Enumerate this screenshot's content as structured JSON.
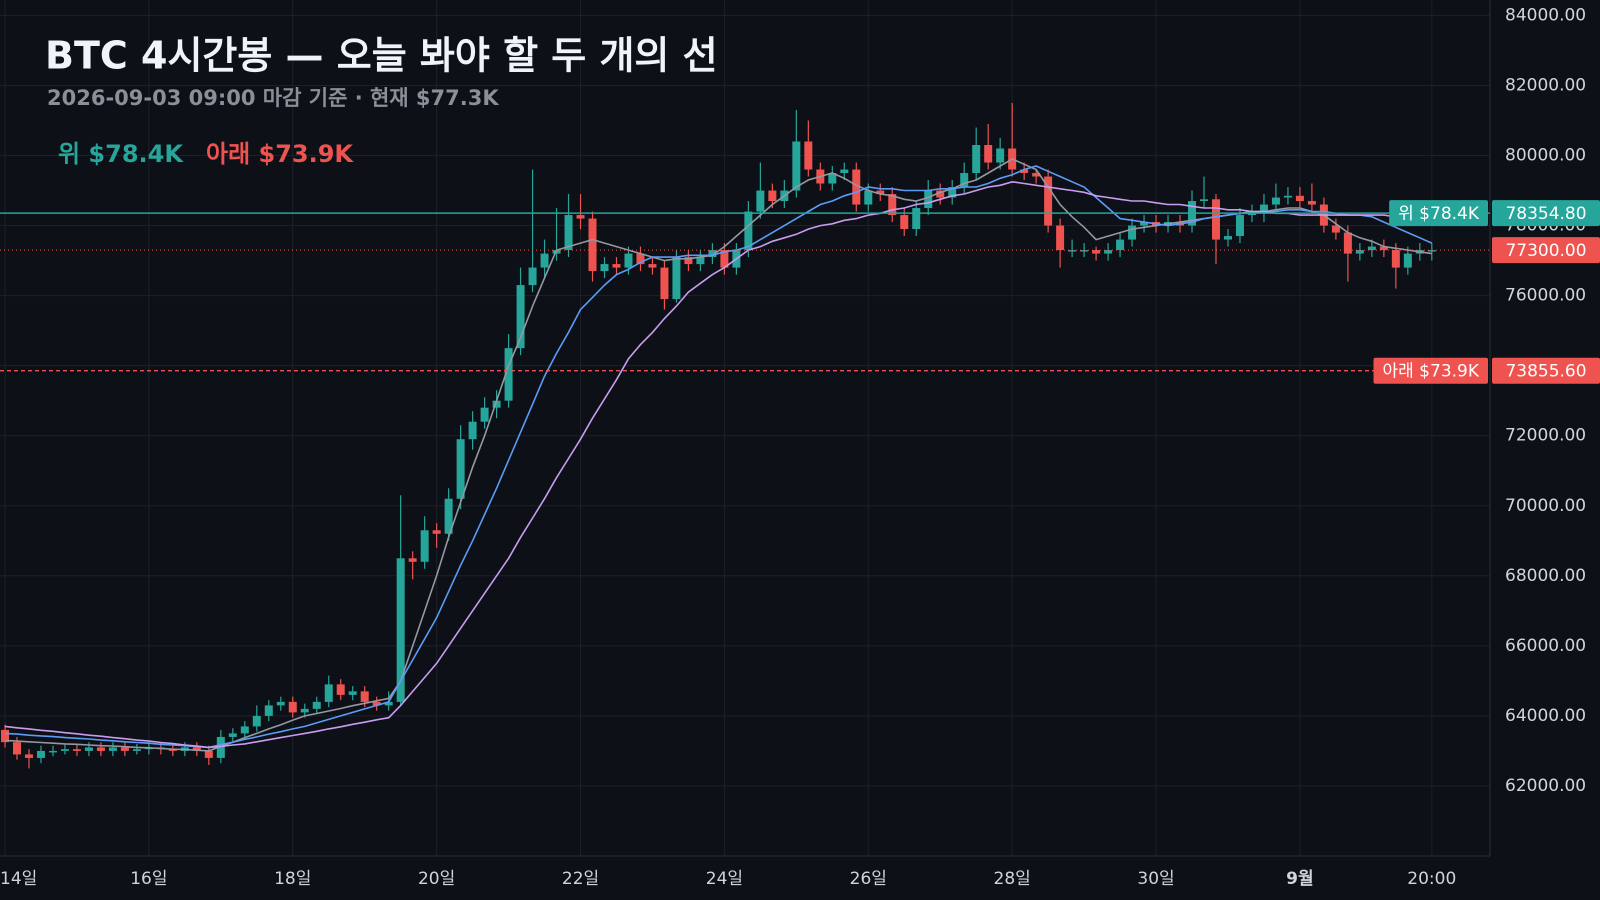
{
  "chart_data": {
    "type": "candlestick",
    "title": "BTC 4시간봉 — 오늘 봐야 할 두 개의 선",
    "subtitle": "2026-09-03 09:00 마감 기준 · 현재 $77.3K",
    "categories": [
      "14일",
      null,
      null,
      null,
      null,
      null,
      null,
      null,
      null,
      null,
      null,
      null,
      "16일",
      null,
      null,
      null,
      null,
      null,
      null,
      null,
      null,
      null,
      null,
      null,
      "18일",
      null,
      null,
      null,
      null,
      null,
      null,
      null,
      null,
      null,
      null,
      null,
      "20일",
      null,
      null,
      null,
      null,
      null,
      null,
      null,
      null,
      null,
      null,
      null,
      "22일",
      null,
      null,
      null,
      null,
      null,
      null,
      null,
      null,
      null,
      null,
      null,
      "24일",
      null,
      null,
      null,
      null,
      null,
      null,
      null,
      null,
      null,
      null,
      null,
      "26일",
      null,
      null,
      null,
      null,
      null,
      null,
      null,
      null,
      null,
      null,
      null,
      "28일",
      null,
      null,
      null,
      null,
      null,
      null,
      null,
      null,
      null,
      null,
      null,
      "30일",
      null,
      null,
      null,
      null,
      null,
      null,
      null,
      null,
      null,
      null,
      null,
      "9월",
      null,
      null,
      null,
      null,
      null,
      null,
      null,
      null,
      null,
      null,
      "20:00"
    ],
    "bold_categories": [
      108
    ],
    "open": [
      63600,
      63250,
      62900,
      62800,
      63000,
      63000,
      63050,
      63000,
      63100,
      63000,
      63100,
      63000,
      63050,
      63100,
      63050,
      63000,
      63100,
      63000,
      62800,
      63400,
      63500,
      63700,
      64000,
      64300,
      64400,
      64100,
      64200,
      64400,
      64900,
      64600,
      64700,
      64400,
      64300,
      64400,
      68500,
      68400,
      69300,
      69200,
      70200,
      71900,
      72400,
      72800,
      73000,
      74500,
      76300,
      76800,
      77200,
      77300,
      78300,
      78200,
      76700,
      76900,
      76800,
      77200,
      76900,
      76800,
      75900,
      77100,
      76900,
      77100,
      77300,
      76800,
      77300,
      78400,
      79000,
      78700,
      79000,
      80400,
      79600,
      79200,
      79500,
      79600,
      78600,
      79000,
      78900,
      78300,
      77900,
      78500,
      79000,
      78800,
      79100,
      79500,
      80300,
      79800,
      80200,
      79600,
      79500,
      79400,
      78000,
      77300,
      77300,
      77300,
      77200,
      77300,
      77600,
      78000,
      78100,
      78000,
      78100,
      78000,
      78700,
      78750,
      77600,
      77700,
      78300,
      78350,
      78600,
      78800,
      78850,
      78700,
      78600,
      78000,
      77800,
      77200,
      77300,
      77400,
      77300,
      76800,
      77200,
      77300
    ],
    "high": [
      63750,
      63400,
      63050,
      63150,
      63150,
      63200,
      63200,
      63250,
      63250,
      63250,
      63250,
      63200,
      63250,
      63250,
      63200,
      63250,
      63250,
      63150,
      63600,
      63650,
      63850,
      64300,
      64450,
      64550,
      64550,
      64350,
      64550,
      65150,
      65050,
      64850,
      64850,
      64550,
      64700,
      70300,
      68700,
      69700,
      69500,
      70500,
      72300,
      72700,
      73100,
      73300,
      74900,
      76800,
      79600,
      77600,
      78500,
      78900,
      78900,
      78400,
      77100,
      77100,
      77400,
      77400,
      77100,
      77000,
      77300,
      77300,
      77300,
      77500,
      77500,
      77500,
      78700,
      79800,
      79200,
      79300,
      81300,
      81000,
      79800,
      79700,
      79800,
      79800,
      79200,
      79200,
      79100,
      78500,
      78700,
      79300,
      79200,
      79300,
      79800,
      80800,
      80900,
      80500,
      81500,
      79800,
      79600,
      79600,
      78200,
      77600,
      77500,
      77400,
      77500,
      77800,
      78200,
      78300,
      78300,
      78300,
      78300,
      79000,
      79400,
      78900,
      77900,
      78500,
      78600,
      78900,
      79200,
      79100,
      79100,
      79200,
      78800,
      78200,
      78000,
      77500,
      77600,
      77600,
      77500,
      77400,
      77500,
      77500
    ],
    "low": [
      63100,
      62750,
      62500,
      62650,
      62850,
      62900,
      62850,
      62850,
      62850,
      62850,
      62850,
      62900,
      62900,
      62900,
      62850,
      62850,
      62850,
      62600,
      62650,
      63250,
      63350,
      63550,
      63850,
      64150,
      63950,
      63950,
      64050,
      64250,
      64450,
      64450,
      64250,
      64150,
      64150,
      64300,
      67900,
      68200,
      68800,
      69000,
      69900,
      71600,
      72200,
      72500,
      72800,
      74300,
      76100,
      76500,
      77000,
      77100,
      77900,
      76400,
      76500,
      76600,
      76600,
      76700,
      76600,
      75600,
      75800,
      76700,
      76700,
      76900,
      76600,
      76600,
      77100,
      78200,
      78500,
      78500,
      78800,
      79400,
      79000,
      79000,
      79300,
      78400,
      78400,
      78700,
      78100,
      77700,
      77700,
      78300,
      78600,
      78600,
      78900,
      79300,
      79600,
      79600,
      79400,
      79300,
      79200,
      77800,
      76800,
      77100,
      77100,
      77000,
      77000,
      77100,
      77400,
      77800,
      77800,
      77800,
      77800,
      77800,
      78500,
      76900,
      77400,
      77500,
      78100,
      78100,
      78400,
      78600,
      78500,
      78400,
      77800,
      77600,
      76400,
      77000,
      77100,
      77100,
      76200,
      76600,
      77000,
      77000
    ],
    "close": [
      63250,
      62900,
      62800,
      63000,
      63000,
      63050,
      63000,
      63100,
      63000,
      63100,
      63000,
      63050,
      63100,
      63050,
      63000,
      63100,
      63000,
      62800,
      63400,
      63500,
      63700,
      64000,
      64300,
      64400,
      64100,
      64200,
      64400,
      64900,
      64600,
      64700,
      64400,
      64300,
      64400,
      68500,
      68400,
      69300,
      69200,
      70200,
      71900,
      72400,
      72800,
      73000,
      74500,
      76300,
      76800,
      77200,
      77300,
      78300,
      78200,
      76700,
      76900,
      76800,
      77200,
      76900,
      76800,
      75900,
      77100,
      76900,
      77100,
      77300,
      76800,
      77300,
      78400,
      79000,
      78700,
      79000,
      80400,
      79600,
      79200,
      79500,
      79600,
      78600,
      79000,
      78900,
      78300,
      77900,
      78500,
      79000,
      78800,
      79100,
      79500,
      80300,
      79800,
      80200,
      79600,
      79500,
      79400,
      78000,
      77300,
      77300,
      77300,
      77200,
      77300,
      77600,
      78000,
      78100,
      78000,
      78100,
      78000,
      78700,
      78750,
      77600,
      77700,
      78300,
      78350,
      78600,
      78800,
      78850,
      78700,
      78600,
      78000,
      77800,
      77200,
      77300,
      77400,
      77300,
      76800,
      77200,
      77300,
      77300
    ],
    "up_color": "#26a69a",
    "down_color": "#ef5350",
    "lines": [
      {
        "color": "#9598a1",
        "values": [
          63300,
          63280,
          63260,
          63240,
          63220,
          63200,
          63190,
          63170,
          63150,
          63140,
          63120,
          63100,
          63090,
          63070,
          63050,
          63040,
          63020,
          63000,
          63130,
          63250,
          63380,
          63500,
          63630,
          63750,
          63880,
          64000,
          64070,
          64140,
          64210,
          64290,
          64360,
          64430,
          64500,
          65000,
          66000,
          67000,
          68000,
          69100,
          70100,
          71100,
          72000,
          73000,
          74000,
          74800,
          75700,
          76500,
          77300,
          77400,
          77500,
          77600,
          77500,
          77400,
          77300,
          77200,
          77100,
          77000,
          77050,
          77050,
          77100,
          77150,
          77400,
          77700,
          78000,
          78300,
          78600,
          78850,
          79100,
          79300,
          79400,
          79500,
          79350,
          79150,
          79000,
          78900,
          78850,
          78750,
          78700,
          78800,
          78950,
          79050,
          79200,
          79300,
          79500,
          79700,
          79900,
          79750,
          79600,
          79100,
          78600,
          78250,
          77950,
          77600,
          77700,
          77800,
          77900,
          77950,
          78000,
          78050,
          78100,
          78150,
          78200,
          78250,
          78300,
          78350,
          78400,
          78400,
          78450,
          78500,
          78500,
          78400,
          78300,
          78050,
          77800,
          77650,
          77550,
          77400,
          77350,
          77300,
          77250,
          77200
        ]
      },
      {
        "color": "#5b9cf6",
        "values": [
          63500,
          63480,
          63450,
          63430,
          63410,
          63380,
          63360,
          63340,
          63310,
          63290,
          63260,
          63240,
          63220,
          63190,
          63170,
          63150,
          63120,
          63100,
          63180,
          63250,
          63330,
          63400,
          63480,
          63550,
          63630,
          63700,
          63800,
          63900,
          64000,
          64100,
          64200,
          64300,
          64400,
          65000,
          65600,
          66200,
          66800,
          67550,
          68300,
          69000,
          69750,
          70500,
          71300,
          72100,
          72900,
          73700,
          74350,
          74950,
          75600,
          75950,
          76300,
          76600,
          76750,
          76950,
          77100,
          77100,
          77100,
          77150,
          77150,
          77150,
          77250,
          77300,
          77400,
          77600,
          77800,
          78000,
          78200,
          78400,
          78600,
          78700,
          78850,
          78950,
          79100,
          79050,
          79050,
          79000,
          79000,
          79000,
          79050,
          79050,
          79100,
          79100,
          79200,
          79350,
          79450,
          79600,
          79700,
          79550,
          79400,
          79250,
          79100,
          78800,
          78500,
          78200,
          78150,
          78100,
          78050,
          78000,
          78050,
          78100,
          78200,
          78250,
          78300,
          78350,
          78350,
          78400,
          78400,
          78450,
          78450,
          78400,
          78400,
          78350,
          78300,
          78300,
          78250,
          78100,
          77950,
          77800,
          77650,
          77500
        ]
      },
      {
        "color": "#c99cf0",
        "values": [
          63700,
          63660,
          63630,
          63590,
          63560,
          63520,
          63490,
          63450,
          63420,
          63380,
          63350,
          63310,
          63280,
          63240,
          63210,
          63170,
          63140,
          63100,
          63130,
          63170,
          63200,
          63260,
          63320,
          63380,
          63440,
          63500,
          63560,
          63630,
          63690,
          63760,
          63820,
          63890,
          63950,
          64300,
          64700,
          65100,
          65500,
          66000,
          66500,
          67000,
          67500,
          68000,
          68500,
          69100,
          69650,
          70200,
          70800,
          71350,
          71900,
          72500,
          73050,
          73600,
          74200,
          74600,
          74950,
          75350,
          75700,
          76100,
          76350,
          76600,
          76800,
          77050,
          77300,
          77400,
          77550,
          77650,
          77750,
          77900,
          78000,
          78050,
          78150,
          78200,
          78300,
          78350,
          78450,
          78500,
          78600,
          78650,
          78750,
          78850,
          78900,
          79000,
          79100,
          79150,
          79250,
          79200,
          79150,
          79100,
          79050,
          79000,
          78950,
          78850,
          78800,
          78750,
          78700,
          78700,
          78650,
          78600,
          78600,
          78550,
          78500,
          78500,
          78450,
          78450,
          78400,
          78400,
          78350,
          78350,
          78300,
          78300,
          78300,
          78300,
          78300,
          78300,
          78300,
          78300,
          78250,
          78250,
          78250,
          78250
        ]
      }
    ],
    "levels": [
      {
        "label": "위 $78.4K",
        "value": {
          "value": 78354.8,
          "label": "78354.80"
        },
        "color": "#26a69a",
        "style": "solid"
      },
      {
        "label": "아래 $73.9K",
        "value": {
          "value": 73855.6,
          "label": "73855.60"
        },
        "color": "#ef5350",
        "style": "dashed"
      }
    ],
    "last": {
      "value": 77300,
      "label": "77300.00",
      "color": "#ef5350"
    },
    "ylim": [
      60000,
      84440
    ],
    "yticks": [
      {
        "value": 62000,
        "label": "62000.00"
      },
      {
        "value": 64000,
        "label": "64000.00"
      },
      {
        "value": 66000,
        "label": "66000.00"
      },
      {
        "value": 68000,
        "label": "68000.00"
      },
      {
        "value": 70000,
        "label": "70000.00"
      },
      {
        "value": 72000,
        "label": "72000.00"
      },
      {
        "value": 74000,
        "label": "74000.00"
      },
      {
        "value": 76000,
        "label": "76000.00"
      },
      {
        "value": 78000,
        "label": "78000.00"
      },
      {
        "value": 80000,
        "label": "80000.00"
      },
      {
        "value": 82000,
        "label": "82000.00"
      },
      {
        "value": 84000,
        "label": "84000.00"
      }
    ],
    "grid": true
  }
}
